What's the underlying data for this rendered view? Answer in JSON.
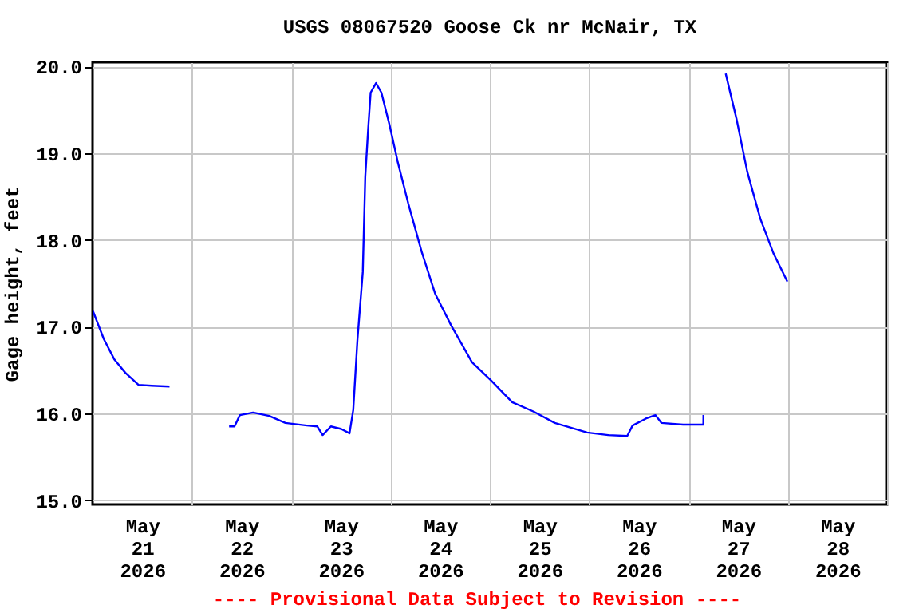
{
  "chart_data": {
    "type": "line",
    "title": "USGS 08067520 Goose Ck nr McNair, TX",
    "ylabel": "Gage height, feet",
    "annotations": [
      "---- Provisional Data Subject to Revision ----"
    ],
    "x": [
      "2026-05-21T00:06",
      "2026-05-21T02:42",
      "2026-05-21T05:18",
      "2026-05-21T07:54",
      "2026-05-21T11:06",
      "2026-05-21T14:18",
      "2026-05-21T18:36",
      "2026-05-21T22:00",
      "2026-05-22T09:00",
      "2026-05-22T10:18",
      "2026-05-22T11:36",
      "2026-05-22T14:48",
      "2026-05-22T18:42",
      "2026-05-22T22:36",
      "2026-05-23T03:48",
      "2026-05-23T06:18",
      "2026-05-23T07:36",
      "2026-05-23T09:36",
      "2026-05-23T12:06",
      "2026-05-23T14:06",
      "2026-05-23T15:00",
      "2026-05-23T16:00",
      "2026-05-23T17:18",
      "2026-05-23T17:54",
      "2026-05-23T18:36",
      "2026-05-23T19:12",
      "2026-05-23T20:30",
      "2026-05-23T21:48",
      "2026-05-23T23:42",
      "2026-05-24T01:42",
      "2026-05-24T04:18",
      "2026-05-24T07:30",
      "2026-05-24T10:48",
      "2026-05-24T14:36",
      "2026-05-24T19:42",
      "2026-05-25T00:18",
      "2026-05-25T05:24",
      "2026-05-25T10:36",
      "2026-05-25T15:42",
      "2026-05-25T23:30",
      "2026-05-26T04:36",
      "2026-05-26T09:12",
      "2026-05-26T10:30",
      "2026-05-26T13:42",
      "2026-05-26T16:00",
      "2026-05-26T17:30",
      "2026-05-26T22:42",
      "2026-05-27T03:36",
      "2026-05-27T03:37",
      "2026-05-27T06:00",
      "2026-05-27T09:00",
      "2026-05-27T11:36",
      "2026-05-27T14:12",
      "2026-05-27T17:24",
      "2026-05-27T20:36",
      "2026-05-27T23:54"
    ],
    "series": [
      {
        "color": "#0000ff",
        "values": [
          17.18,
          16.86,
          16.62,
          16.47,
          16.33,
          16.32,
          16.31,
          null,
          15.85,
          15.85,
          15.98,
          16.01,
          15.97,
          15.89,
          15.86,
          15.85,
          15.75,
          15.85,
          15.82,
          15.77,
          16.04,
          16.84,
          17.63,
          18.73,
          19.28,
          19.7,
          19.81,
          19.7,
          19.34,
          18.91,
          18.42,
          17.87,
          17.38,
          17.02,
          16.59,
          16.38,
          16.13,
          16.02,
          15.89,
          15.78,
          15.75,
          15.74,
          15.86,
          15.94,
          15.98,
          15.89,
          15.87,
          15.87,
          15.98,
          null,
          19.92,
          19.4,
          18.79,
          18.24,
          17.84,
          17.52
        ]
      }
    ],
    "xlim": [
      "2026-05-21T00:00",
      "2026-05-29T00:00"
    ],
    "xticks": [
      {
        "value": "2026-05-21T12:00",
        "label": "May\n21\n2026"
      },
      {
        "value": "2026-05-22T12:00",
        "label": "May\n22\n2026"
      },
      {
        "value": "2026-05-23T12:00",
        "label": "May\n23\n2026"
      },
      {
        "value": "2026-05-24T12:00",
        "label": "May\n24\n2026"
      },
      {
        "value": "2026-05-25T12:00",
        "label": "May\n25\n2026"
      },
      {
        "value": "2026-05-26T12:00",
        "label": "May\n26\n2026"
      },
      {
        "value": "2026-05-27T12:00",
        "label": "May\n27\n2026"
      },
      {
        "value": "2026-05-28T12:00",
        "label": "May\n28\n2026"
      },
      {
        "value": "2026-05-22T00:00",
        "label": null
      },
      {
        "value": "2026-05-23T00:00",
        "label": null
      },
      {
        "value": "2026-05-24T00:00",
        "label": null
      },
      {
        "value": "2026-05-25T00:00",
        "label": null
      },
      {
        "value": "2026-05-26T00:00",
        "label": null
      },
      {
        "value": "2026-05-27T00:00",
        "label": null
      },
      {
        "value": "2026-05-28T00:00",
        "label": null
      },
      {
        "value": "2026-05-29T00:00",
        "label": null
      }
    ],
    "ylim": [
      14.95,
      20.05
    ],
    "yticks": [
      {
        "value": 15,
        "label": "15.0"
      },
      {
        "value": 16,
        "label": "16.0"
      },
      {
        "value": 17,
        "label": "17.0"
      },
      {
        "value": 18,
        "label": "18.0"
      },
      {
        "value": 19,
        "label": "19.0"
      },
      {
        "value": 20,
        "label": "20.0"
      }
    ],
    "grid": true,
    "legend": false
  }
}
